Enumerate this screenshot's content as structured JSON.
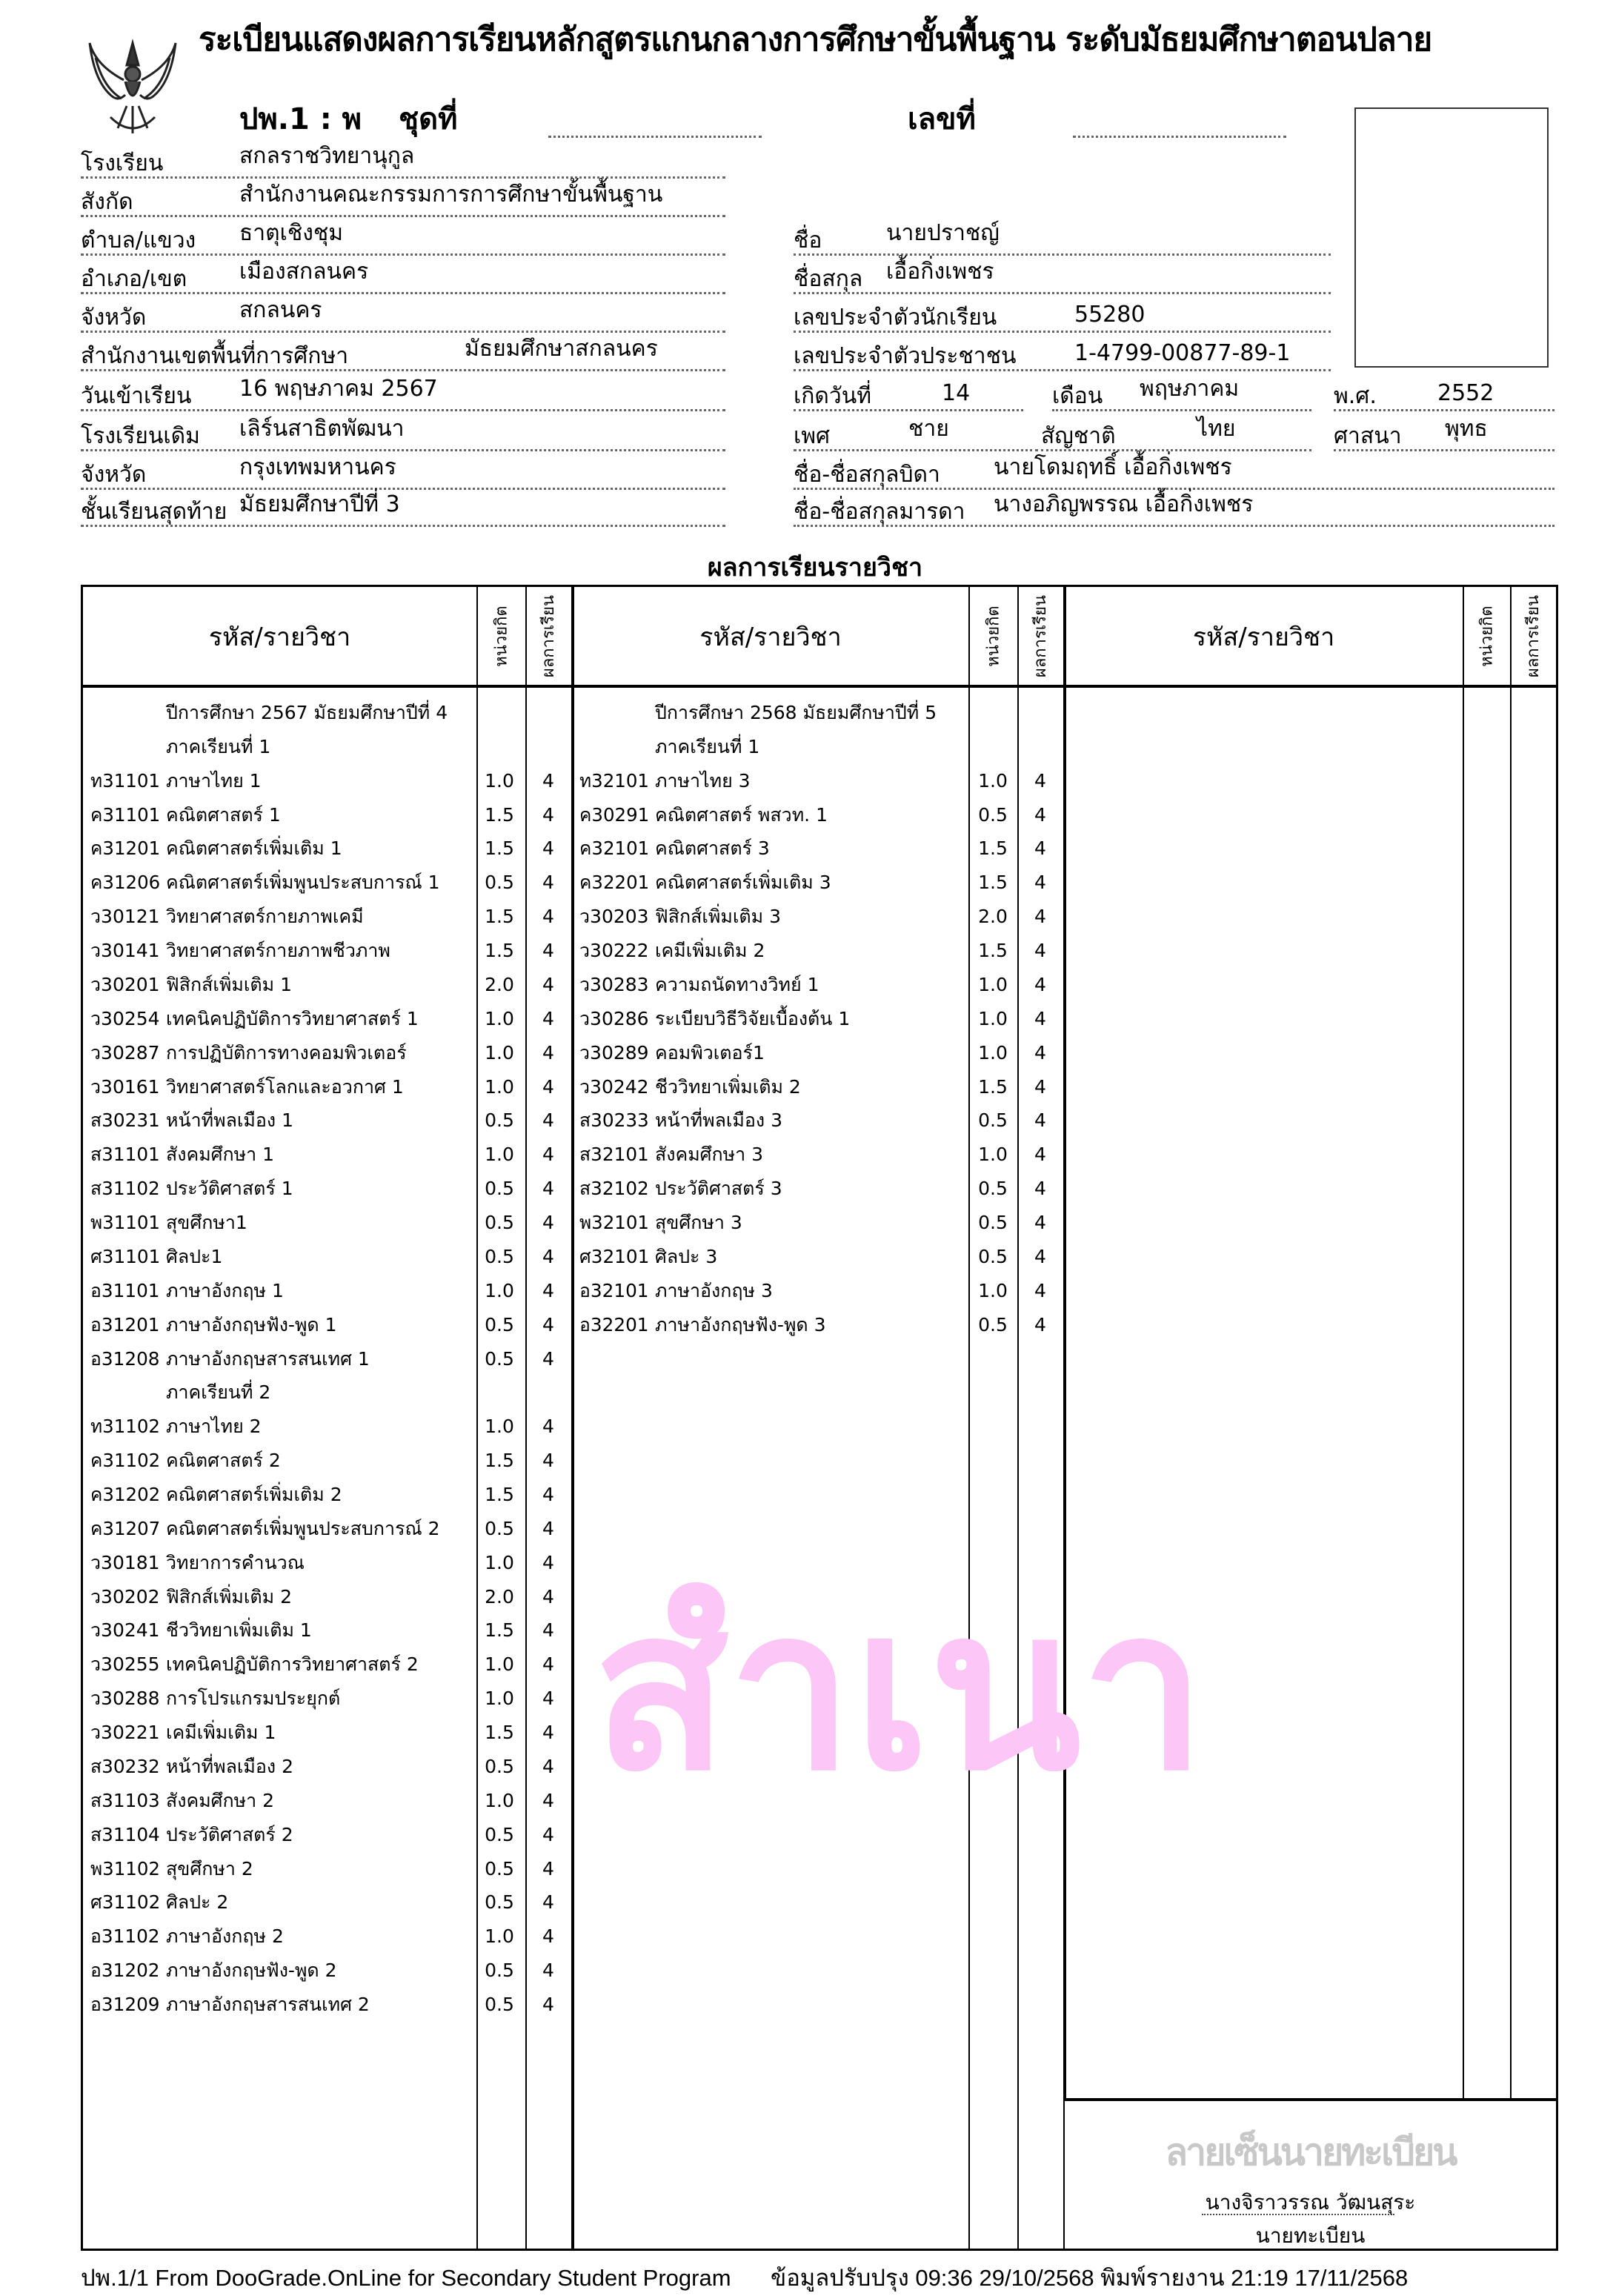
{
  "header": {
    "title": "ระเบียนแสดงผลการเรียนหลักสูตรแกนกลางการศึกษาขั้นพื้นฐาน  ระดับมัธยมศึกษาตอนปลาย",
    "form_code": "ปพ.1 : พ",
    "set_label": "ชุดที่",
    "number_label": "เลขที่",
    "emblem": "garuda-emblem"
  },
  "school_info": {
    "school": {
      "label": "โรงเรียน",
      "value": "สกลราชวิทยานุกูล"
    },
    "affiliation": {
      "label": "สังกัด",
      "value": "สำนักงานคณะกรรมการการศึกษาขั้นพื้นฐาน"
    },
    "subdistrict": {
      "label": "ตำบล/แขวง",
      "value": "ธาตุเชิงชุม"
    },
    "district": {
      "label": "อำเภอ/เขต",
      "value": "เมืองสกลนคร"
    },
    "province": {
      "label": "จังหวัด",
      "value": "สกลนคร"
    },
    "area_office": {
      "label": "สำนักงานเขตพื้นที่การศึกษา",
      "value": "มัธยมศึกษาสกลนคร"
    },
    "entry_date": {
      "label": "วันเข้าเรียน",
      "value": "16  พฤษภาคม  2567"
    },
    "previous_school": {
      "label": "โรงเรียนเดิม",
      "value": "เลิร์นสาธิตพัฒนา"
    },
    "previous_province": {
      "label": "จังหวัด",
      "value": "กรุงเทพมหานคร"
    },
    "last_grade": {
      "label": "ชั้นเรียนสุดท้าย",
      "value": "มัธยมศึกษาปีที่ 3"
    }
  },
  "student_info": {
    "first_name": {
      "label": "ชื่อ",
      "value": "นายปราชญ์"
    },
    "last_name": {
      "label": "ชื่อสกุล",
      "value": "เอื้อกิ่งเพชร"
    },
    "student_id": {
      "label": "เลขประจำตัวนักเรียน",
      "value": "55280"
    },
    "citizen_id": {
      "label": "เลขประจำตัวประชาชน",
      "value": "1-4799-00877-89-1"
    },
    "birth_day": {
      "label": "เกิดวันที่",
      "value": "14"
    },
    "birth_month": {
      "label": "เดือน",
      "value": "พฤษภาคม"
    },
    "birth_year": {
      "label": "พ.ศ.",
      "value": "2552"
    },
    "sex": {
      "label": "เพศ",
      "value": "ชาย"
    },
    "nationality": {
      "label": "สัญชาติ",
      "value": "ไทย"
    },
    "religion": {
      "label": "ศาสนา",
      "value": "พุทธ"
    },
    "father": {
      "label": "ชื่อ-ชื่อสกุลบิดา",
      "value": "นายโดมฤทธิ์  เอื้อกิ่งเพชร"
    },
    "mother": {
      "label": "ชื่อ-ชื่อสกุลมารดา",
      "value": "นางอภิญพรรณ  เอื้อกิ่งเพชร"
    }
  },
  "results": {
    "section_title": "ผลการเรียนรายวิชา",
    "col_subject": "รหัส/รายวิชา",
    "col_credits": "หน่วยกิต",
    "col_grade": "ผลการเรียน",
    "columns": [
      [
        {
          "type": "heading",
          "text": "ปีการศึกษา 2567  มัธยมศึกษาปีที่ 4"
        },
        {
          "type": "heading",
          "text": "ภาคเรียนที่ 1"
        },
        {
          "code": "ท31101",
          "name": "ภาษาไทย 1",
          "credits": "1.0",
          "grade": "4"
        },
        {
          "code": "ค31101",
          "name": "คณิตศาสตร์ 1",
          "credits": "1.5",
          "grade": "4"
        },
        {
          "code": "ค31201",
          "name": "คณิตศาสตร์เพิ่มเติม 1",
          "credits": "1.5",
          "grade": "4"
        },
        {
          "code": "ค31206",
          "name": "คณิตศาสตร์เพิ่มพูนประสบการณ์ 1",
          "credits": "0.5",
          "grade": "4"
        },
        {
          "code": "ว30121",
          "name": "วิทยาศาสตร์กายภาพเคมี",
          "credits": "1.5",
          "grade": "4"
        },
        {
          "code": "ว30141",
          "name": "วิทยาศาสตร์กายภาพชีวภาพ",
          "credits": "1.5",
          "grade": "4"
        },
        {
          "code": "ว30201",
          "name": "ฟิสิกส์เพิ่มเติม 1",
          "credits": "2.0",
          "grade": "4"
        },
        {
          "code": "ว30254",
          "name": "เทคนิคปฏิบัติการวิทยาศาสตร์ 1",
          "credits": "1.0",
          "grade": "4"
        },
        {
          "code": "ว30287",
          "name": "การปฏิบัติการทางคอมพิวเตอร์",
          "credits": "1.0",
          "grade": "4"
        },
        {
          "code": "ว30161",
          "name": "วิทยาศาสตร์โลกและอวกาศ 1",
          "credits": "1.0",
          "grade": "4"
        },
        {
          "code": "ส30231",
          "name": "หน้าที่พลเมือง 1",
          "credits": "0.5",
          "grade": "4"
        },
        {
          "code": "ส31101",
          "name": "สังคมศึกษา 1",
          "credits": "1.0",
          "grade": "4"
        },
        {
          "code": "ส31102",
          "name": "ประวัติศาสตร์ 1",
          "credits": "0.5",
          "grade": "4"
        },
        {
          "code": "พ31101",
          "name": "สุขศึกษา1",
          "credits": "0.5",
          "grade": "4"
        },
        {
          "code": "ศ31101",
          "name": "ศิลปะ1",
          "credits": "0.5",
          "grade": "4"
        },
        {
          "code": "อ31101",
          "name": "ภาษาอังกฤษ 1",
          "credits": "1.0",
          "grade": "4"
        },
        {
          "code": "อ31201",
          "name": "ภาษาอังกฤษฟัง-พูด 1",
          "credits": "0.5",
          "grade": "4"
        },
        {
          "code": "อ31208",
          "name": "ภาษาอังกฤษสารสนเทศ 1",
          "credits": "0.5",
          "grade": "4"
        },
        {
          "type": "heading",
          "text": "ภาคเรียนที่ 2"
        },
        {
          "code": "ท31102",
          "name": "ภาษาไทย 2",
          "credits": "1.0",
          "grade": "4"
        },
        {
          "code": "ค31102",
          "name": "คณิตศาสตร์ 2",
          "credits": "1.5",
          "grade": "4"
        },
        {
          "code": "ค31202",
          "name": "คณิตศาสตร์เพิ่มเติม 2",
          "credits": "1.5",
          "grade": "4"
        },
        {
          "code": "ค31207",
          "name": "คณิตศาสตร์เพิ่มพูนประสบการณ์ 2",
          "credits": "0.5",
          "grade": "4"
        },
        {
          "code": "ว30181",
          "name": "วิทยาการคำนวณ",
          "credits": "1.0",
          "grade": "4"
        },
        {
          "code": "ว30202",
          "name": "ฟิสิกส์เพิ่มเติม 2",
          "credits": "2.0",
          "grade": "4"
        },
        {
          "code": "ว30241",
          "name": "ชีววิทยาเพิ่มเติม 1",
          "credits": "1.5",
          "grade": "4"
        },
        {
          "code": "ว30255",
          "name": "เทคนิคปฏิบัติการวิทยาศาสตร์ 2",
          "credits": "1.0",
          "grade": "4"
        },
        {
          "code": "ว30288",
          "name": "การโปรแกรมประยุกต์",
          "credits": "1.0",
          "grade": "4"
        },
        {
          "code": "ว30221",
          "name": "เคมีเพิ่มเติม 1",
          "credits": "1.5",
          "grade": "4"
        },
        {
          "code": "ส30232",
          "name": "หน้าที่พลเมือง 2",
          "credits": "0.5",
          "grade": "4"
        },
        {
          "code": "ส31103",
          "name": "สังคมศึกษา 2",
          "credits": "1.0",
          "grade": "4"
        },
        {
          "code": "ส31104",
          "name": "ประวัติศาสตร์ 2",
          "credits": "0.5",
          "grade": "4"
        },
        {
          "code": "พ31102",
          "name": "สุขศึกษา 2",
          "credits": "0.5",
          "grade": "4"
        },
        {
          "code": "ศ31102",
          "name": "ศิลปะ 2",
          "credits": "0.5",
          "grade": "4"
        },
        {
          "code": "อ31102",
          "name": "ภาษาอังกฤษ 2",
          "credits": "1.0",
          "grade": "4"
        },
        {
          "code": "อ31202",
          "name": "ภาษาอังกฤษฟัง-พูด 2",
          "credits": "0.5",
          "grade": "4"
        },
        {
          "code": "อ31209",
          "name": "ภาษาอังกฤษสารสนเทศ 2",
          "credits": "0.5",
          "grade": "4"
        }
      ],
      [
        {
          "type": "heading",
          "text": "ปีการศึกษา 2568  มัธยมศึกษาปีที่ 5"
        },
        {
          "type": "heading",
          "text": "ภาคเรียนที่ 1"
        },
        {
          "code": "ท32101",
          "name": "ภาษาไทย 3",
          "credits": "1.0",
          "grade": "4"
        },
        {
          "code": "ค30291",
          "name": "คณิตศาสตร์ พสวท. 1",
          "credits": "0.5",
          "grade": "4"
        },
        {
          "code": "ค32101",
          "name": "คณิตศาสตร์ 3",
          "credits": "1.5",
          "grade": "4"
        },
        {
          "code": "ค32201",
          "name": "คณิตศาสตร์เพิ่มเติม 3",
          "credits": "1.5",
          "grade": "4"
        },
        {
          "code": "ว30203",
          "name": "ฟิสิกส์เพิ่มเติม 3",
          "credits": "2.0",
          "grade": "4"
        },
        {
          "code": "ว30222",
          "name": "เคมีเพิ่มเติม 2",
          "credits": "1.5",
          "grade": "4"
        },
        {
          "code": "ว30283",
          "name": "ความถนัดทางวิทย์ 1",
          "credits": "1.0",
          "grade": "4"
        },
        {
          "code": "ว30286",
          "name": "ระเบียบวิธีวิจัยเบื้องต้น 1",
          "credits": "1.0",
          "grade": "4"
        },
        {
          "code": "ว30289",
          "name": "คอมพิวเตอร์1",
          "credits": "1.0",
          "grade": "4"
        },
        {
          "code": "ว30242",
          "name": "ชีววิทยาเพิ่มเติม 2",
          "credits": "1.5",
          "grade": "4"
        },
        {
          "code": "ส30233",
          "name": "หน้าที่พลเมือง 3",
          "credits": "0.5",
          "grade": "4"
        },
        {
          "code": "ส32101",
          "name": "สังคมศึกษา 3",
          "credits": "1.0",
          "grade": "4"
        },
        {
          "code": "ส32102",
          "name": "ประวัติศาสตร์ 3",
          "credits": "0.5",
          "grade": "4"
        },
        {
          "code": "พ32101",
          "name": "สุขศึกษา 3",
          "credits": "0.5",
          "grade": "4"
        },
        {
          "code": "ศ32101",
          "name": "ศิลปะ 3",
          "credits": "0.5",
          "grade": "4"
        },
        {
          "code": "อ32101",
          "name": "ภาษาอังกฤษ 3",
          "credits": "1.0",
          "grade": "4"
        },
        {
          "code": "อ32201",
          "name": "ภาษาอังกฤษฟัง-พูด 3",
          "credits": "0.5",
          "grade": "4"
        }
      ],
      []
    ]
  },
  "signature": {
    "placeholder": "ลายเซ็นนายทะเบียน",
    "name": "นางจิราวรรณ  วัฒนสุระ",
    "position": "นายทะเบียน"
  },
  "watermark": "สำเนา",
  "watermark_color": "#fcc6f6",
  "footer": {
    "left": "ปพ.1/1 From DooGrade.OnLine for Secondary Student Program",
    "right": "ข้อมูลปรับปรุง 09:36 29/10/2568  พิมพ์รายงาน 21:19 17/11/2568"
  }
}
